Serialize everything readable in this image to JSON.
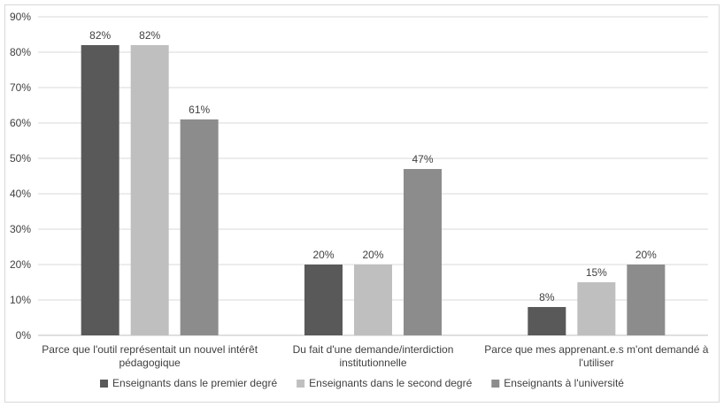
{
  "chart_data": {
    "type": "bar",
    "categories": [
      [
        "Parce que l'outil représentait un nouvel intérêt",
        "pédagogique"
      ],
      [
        "Du fait d'une demande/interdiction",
        "institutionnelle"
      ],
      [
        "Parce que mes apprenant.e.s m'ont demandé à",
        "l'utiliser"
      ]
    ],
    "series": [
      {
        "name": "Enseignants dans le premier degré",
        "values": [
          82,
          20,
          8
        ],
        "color": "#595959"
      },
      {
        "name": "Enseignants dans le second degré",
        "values": [
          82,
          20,
          15
        ],
        "color": "#bfbfbf"
      },
      {
        "name": "Enseignants à l'université",
        "values": [
          61,
          47,
          20
        ],
        "color": "#8c8c8c"
      }
    ],
    "ylim": [
      0,
      90
    ],
    "yticks": [
      "0%",
      "10%",
      "20%",
      "30%",
      "40%",
      "50%",
      "60%",
      "70%",
      "80%",
      "90%"
    ],
    "value_suffix": "%",
    "grid": true,
    "legend_position": "bottom"
  }
}
